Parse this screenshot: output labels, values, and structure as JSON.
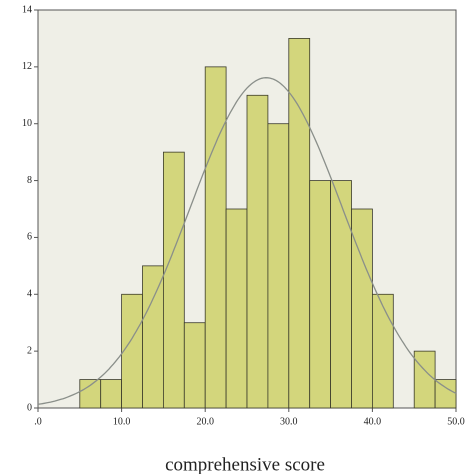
{
  "chart_data": {
    "type": "histogram",
    "x_label": "comprehensive score",
    "bins": [
      5,
      7.5,
      10,
      12.5,
      15,
      17.5,
      20,
      22.5,
      25,
      27.5,
      30,
      32.5,
      35,
      37.5,
      40,
      42.5,
      45,
      47.5,
      50
    ],
    "values": [
      1,
      1,
      4,
      5,
      9,
      3,
      12,
      7,
      11,
      10,
      13,
      8,
      8,
      7,
      4,
      0,
      2,
      1
    ],
    "color": "#d3d67c",
    "edge_color": "#3a3a2a",
    "curve_color": "#8a8f8a",
    "density_curve": {
      "mean": 27.3,
      "sd": 9.1
    },
    "xlim": [
      0,
      50
    ],
    "xticks": [
      {
        "value": 0,
        "label": ".0"
      },
      {
        "value": 10,
        "label": "10.0"
      },
      {
        "value": 20,
        "label": "20.0"
      },
      {
        "value": 30,
        "label": "30.0"
      },
      {
        "value": 40,
        "label": "40.0"
      },
      {
        "value": 50,
        "label": "50.0"
      }
    ],
    "ylim": [
      0,
      14
    ],
    "yticks": [
      0,
      2,
      4,
      6,
      8,
      10,
      12,
      14
    ]
  }
}
